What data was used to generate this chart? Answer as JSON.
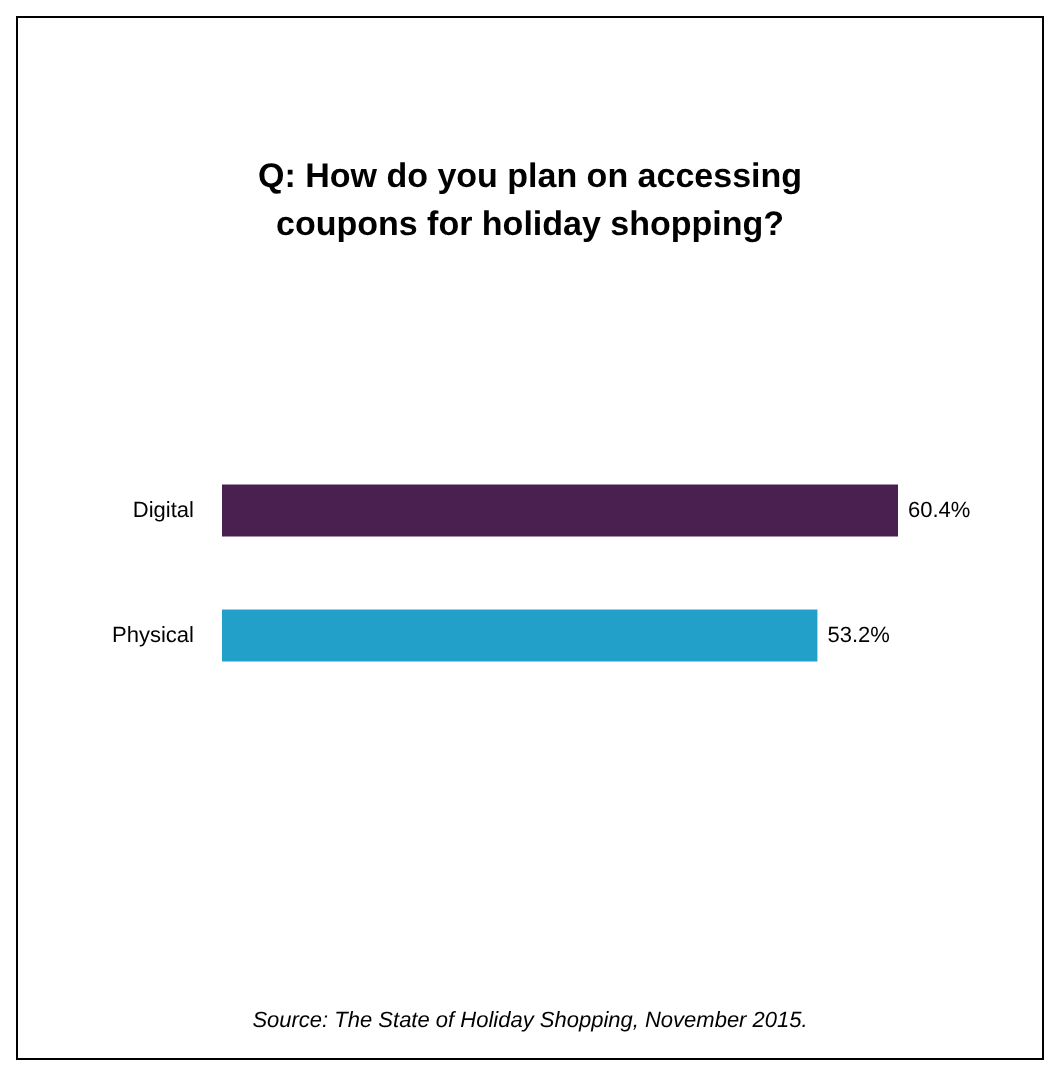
{
  "chart_data": {
    "type": "bar",
    "orientation": "horizontal",
    "title": "Q: How do you plan on accessing\ncoupons for holiday shopping?",
    "categories": [
      "Digital",
      "Physical"
    ],
    "values": [
      60.4,
      53.2
    ],
    "colors": [
      "#4a2050",
      "#23a0c9"
    ],
    "value_labels": [
      "60.4%",
      "53.2%"
    ],
    "annotations": [
      "Source: The State of Holiday Shopping, November 2015."
    ]
  }
}
